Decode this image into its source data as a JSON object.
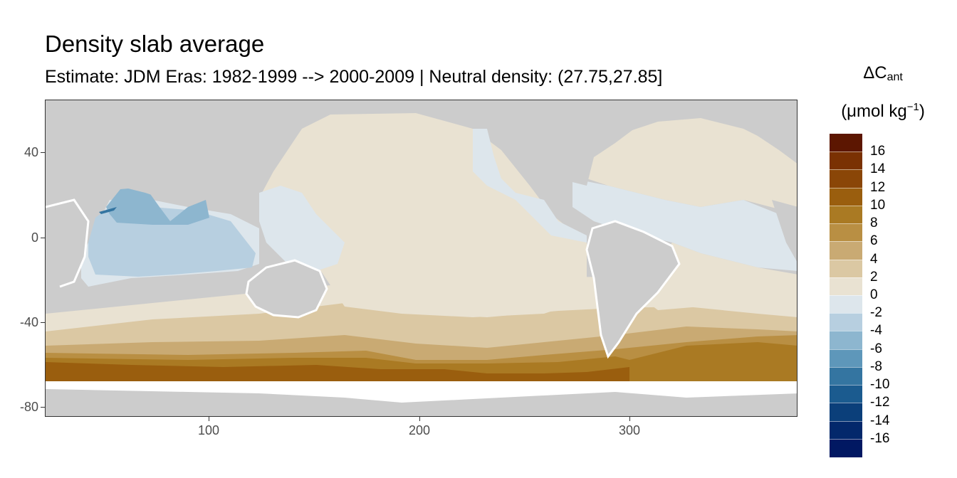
{
  "title": "Density slab average",
  "subtitle": "Estimate: JDM Eras: 1982-1999 --> 2000-2009 | Neutral density: (27.75,27.85]",
  "legend": {
    "symbol": "ΔC",
    "symbol_sub": "ant",
    "unit_open": "(μmol kg",
    "unit_sup": "−1",
    "unit_close": ")",
    "labels": [
      "16",
      "14",
      "12",
      "10",
      "8",
      "6",
      "4",
      "2",
      "0",
      "-2",
      "-4",
      "-6",
      "-8",
      "-10",
      "-12",
      "-14",
      "-16"
    ],
    "colors": [
      "#5c1601",
      "#7a3103",
      "#8a4607",
      "#9a5e0e",
      "#aa7a23",
      "#b98f43",
      "#c9aa73",
      "#dbc8a3",
      "#e9e2d2",
      "#dde6ec",
      "#b7cfe0",
      "#8db6cf",
      "#5e97ba",
      "#3475a1",
      "#1b5b8f",
      "#0b3f7a",
      "#03286b",
      "#011862"
    ]
  },
  "axes": {
    "x_ticks": [
      "100",
      "200",
      "300"
    ],
    "y_ticks": [
      "40",
      "0",
      "-40",
      "-80"
    ]
  },
  "map_colors": {
    "land": "#cccccc",
    "ocean_white": "#ffffff"
  }
}
